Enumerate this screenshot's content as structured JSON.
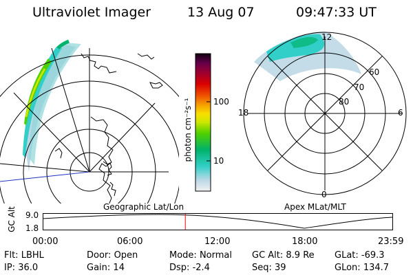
{
  "header": {
    "instrument": "Ultraviolet Imager",
    "date": "13 Aug 07",
    "time": "09:47:33 UT"
  },
  "colorbar": {
    "unit_label": "photon cm⁻²s⁻¹",
    "ticks": [
      "100",
      "10"
    ],
    "scale": "log",
    "colors": [
      "#f0f0f0",
      "#bcd8e6",
      "#32cfc8",
      "#00b26b",
      "#50d000",
      "#cbe600",
      "#f8e000",
      "#f6a600",
      "#ee4c00",
      "#d80000",
      "#9e0030",
      "#66004a",
      "#100010"
    ]
  },
  "left_panel": {
    "title": "Geographic Lat/Lon"
  },
  "right_panel": {
    "title": "Apex MLat/MLT",
    "mlt_labels": [
      "12",
      "18",
      "6",
      "0"
    ],
    "lat_labels": [
      "60",
      "70",
      "80"
    ]
  },
  "altitude_plot": {
    "ylabel": "GC Alt",
    "yticks": [
      "9.0",
      "1.8"
    ],
    "xticks": [
      "00:00",
      "06:00",
      "12:00",
      "18:00",
      "23:59"
    ],
    "current_time_hours": 9.79,
    "marker_color": "#ff0000"
  },
  "footer": {
    "row1": [
      {
        "label": "Flt:",
        "value": "LBHL"
      },
      {
        "label": "Door:",
        "value": "Open"
      },
      {
        "label": "Mode:",
        "value": "Normal"
      },
      {
        "label": "GC Alt:",
        "value": "8.9 Re"
      },
      {
        "label": "GLat:",
        "value": "-69.3"
      }
    ],
    "row2": [
      {
        "label": "IP:",
        "value": "36.0"
      },
      {
        "label": "Gain:",
        "value": "14"
      },
      {
        "label": "Dsp:",
        "value": "-2.4"
      },
      {
        "label": "Seq:",
        "value": "39"
      },
      {
        "label": "GLon:",
        "value": "134.7"
      }
    ]
  }
}
